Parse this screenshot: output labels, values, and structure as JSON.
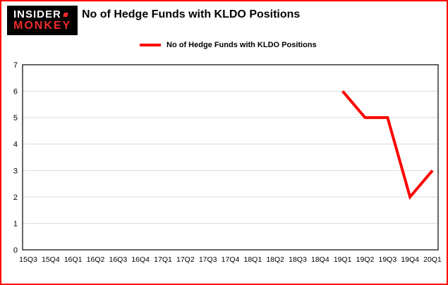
{
  "page": {
    "border_color": "#ff0000",
    "background": "#ffffff"
  },
  "logo": {
    "line1": "INSIDER",
    "line2": "MONKEY",
    "bg_color": "#000000",
    "line1_color": "#ffffff",
    "line2_color": "#ee2b2b"
  },
  "header": {
    "title": "No of Hedge Funds with KLDO Positions"
  },
  "legend": {
    "label": "No of Hedge Funds with KLDO Positions",
    "line_color": "#ff0000"
  },
  "chart_data": {
    "type": "line",
    "title": "No of Hedge Funds with KLDO Positions",
    "categories": [
      "15Q3",
      "15Q4",
      "16Q1",
      "16Q2",
      "16Q3",
      "16Q4",
      "17Q1",
      "17Q2",
      "17Q3",
      "17Q4",
      "18Q1",
      "18Q2",
      "18Q3",
      "18Q4",
      "19Q1",
      "19Q2",
      "19Q3",
      "19Q4",
      "20Q1"
    ],
    "series": [
      {
        "name": "No of Hedge Funds with KLDO Positions",
        "color": "#ff0000",
        "values": [
          null,
          null,
          null,
          null,
          null,
          null,
          null,
          null,
          null,
          null,
          null,
          null,
          null,
          null,
          6,
          5,
          5,
          2,
          3
        ]
      }
    ],
    "xlabel": "",
    "ylabel": "",
    "ylim": [
      0,
      7
    ],
    "ytick_step": 1,
    "grid": true,
    "grid_color": "#d9d9d9",
    "axis_color": "#000000",
    "legend_position": "top"
  }
}
